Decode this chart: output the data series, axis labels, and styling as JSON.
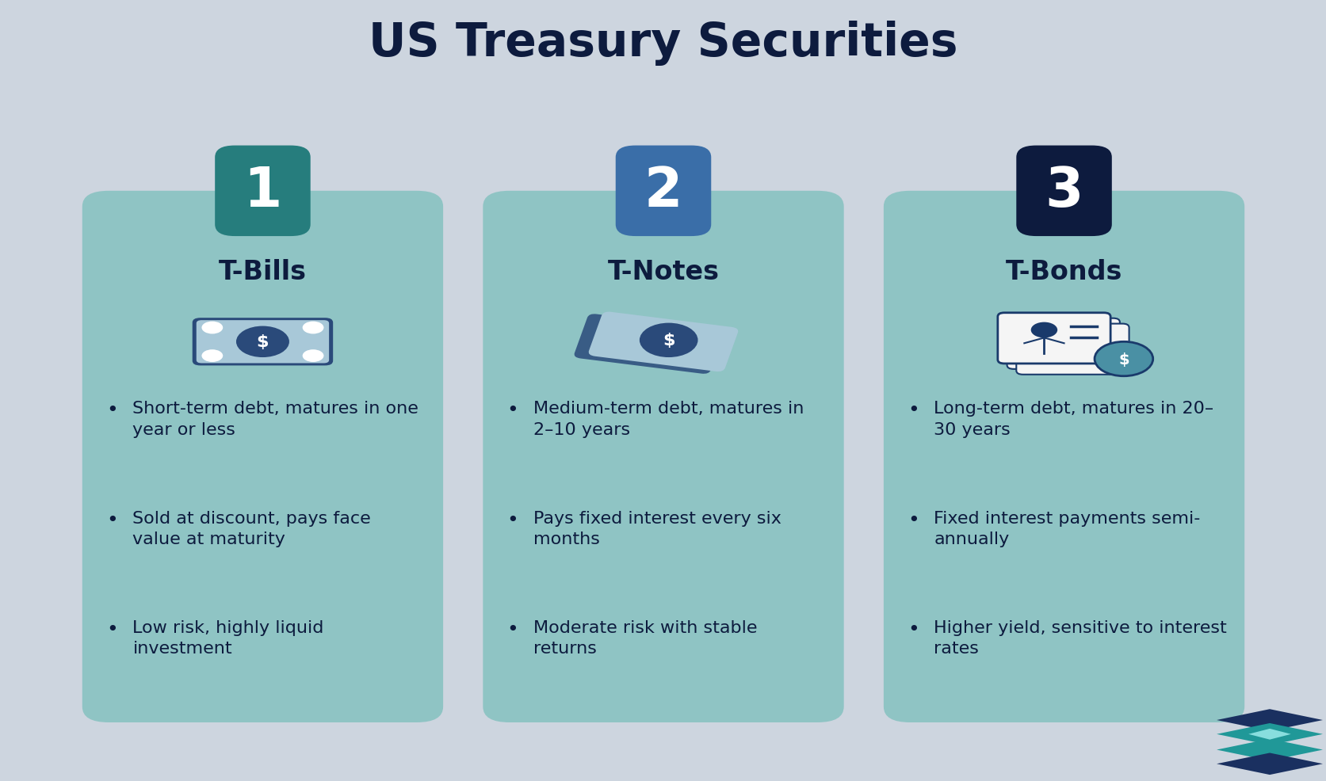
{
  "title": "US Treasury Securities",
  "title_fontsize": 42,
  "title_color": "#0d1b3e",
  "background_color": "#cdd5df",
  "card_color": "#8fc4c4",
  "number_bg_colors": [
    "#267d7d",
    "#3a6ea8",
    "#0d1b3e"
  ],
  "number_labels": [
    "1",
    "2",
    "3"
  ],
  "card_titles": [
    "T-Bills",
    "T-Notes",
    "T-Bonds"
  ],
  "card_title_color": "#0d1b3e",
  "card_title_fontsize": 24,
  "bullet_color": "#0d1b3e",
  "bullet_fontsize": 16,
  "bullets": [
    [
      "Short-term debt, matures in one\nyear or less",
      "Sold at discount, pays face\nvalue at maturity",
      "Low risk, highly liquid\ninvestment"
    ],
    [
      "Medium-term debt, matures in\n2–10 years",
      "Pays fixed interest every six\nmonths",
      "Moderate risk with stable\nreturns"
    ],
    [
      "Long-term debt, matures in 20–\n30 years",
      "Fixed interest payments semi-\nannually",
      "Higher yield, sensitive to interest\nrates"
    ]
  ],
  "bill_light": "#a8c8d8",
  "bill_dark": "#2a4a7a",
  "bill_circle": "#2a4a7a",
  "bond_outline": "#1a3a6b",
  "bond_fill": "#f5f5f5",
  "coin_fill": "#4a90a4"
}
